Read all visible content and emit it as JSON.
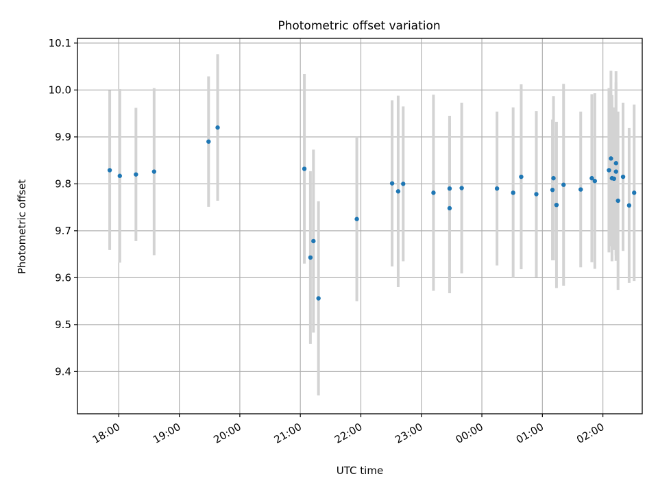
{
  "chart_data": {
    "type": "scatter",
    "title": "Photometric offset variation",
    "xlabel": "UTC time",
    "ylabel": "Photometric offset",
    "grid": true,
    "x_axis": "time (hours, wrapping past midnight)",
    "xlim": [
      "17:19",
      "26:39"
    ],
    "ylim": [
      9.31,
      10.11
    ],
    "x_ticks": [
      {
        "t": "18:00",
        "label": "18:00"
      },
      {
        "t": "19:00",
        "label": "19:00"
      },
      {
        "t": "20:00",
        "label": "20:00"
      },
      {
        "t": "21:00",
        "label": "21:00"
      },
      {
        "t": "22:00",
        "label": "22:00"
      },
      {
        "t": "23:00",
        "label": "23:00"
      },
      {
        "t": "24:00",
        "label": "00:00"
      },
      {
        "t": "25:00",
        "label": "01:00"
      },
      {
        "t": "26:00",
        "label": "02:00"
      }
    ],
    "y_ticks": [
      "9.4",
      "9.5",
      "9.6",
      "9.7",
      "9.8",
      "9.9",
      "10.0",
      "10.1"
    ],
    "colors": {
      "points": "#1f77b4",
      "errorbars": "#d3d3d3",
      "grid": "#b0b0b0"
    },
    "points": [
      {
        "t": "17:51",
        "y": 9.829,
        "err": 0.17
      },
      {
        "t": "18:01",
        "y": 9.817,
        "err": 0.185
      },
      {
        "t": "18:17",
        "y": 9.82,
        "err": 0.142
      },
      {
        "t": "18:35",
        "y": 9.826,
        "err": 0.178
      },
      {
        "t": "19:29",
        "y": 9.89,
        "err": 0.139
      },
      {
        "t": "19:38",
        "y": 9.92,
        "err": 0.156
      },
      {
        "t": "21:04",
        "y": 9.832,
        "err": 0.202
      },
      {
        "t": "21:10",
        "y": 9.643,
        "err": 0.184
      },
      {
        "t": "21:13",
        "y": 9.678,
        "err": 0.195
      },
      {
        "t": "21:18",
        "y": 9.556,
        "err": 0.207
      },
      {
        "t": "21:56",
        "y": 9.725,
        "err": 0.175
      },
      {
        "t": "22:31",
        "y": 9.801,
        "err": 0.177
      },
      {
        "t": "22:37",
        "y": 9.784,
        "err": 0.204
      },
      {
        "t": "22:42",
        "y": 9.8,
        "err": 0.165
      },
      {
        "t": "23:12",
        "y": 9.781,
        "err": 0.209
      },
      {
        "t": "23:28",
        "y": 9.748,
        "err": 0.181
      },
      {
        "t": "23:28",
        "y": 9.79,
        "err": 0.155
      },
      {
        "t": "23:40",
        "y": 9.791,
        "err": 0.182
      },
      {
        "t": "24:15",
        "y": 9.79,
        "err": 0.164
      },
      {
        "t": "24:31",
        "y": 9.781,
        "err": 0.182
      },
      {
        "t": "24:39",
        "y": 9.815,
        "err": 0.197
      },
      {
        "t": "24:54",
        "y": 9.778,
        "err": 0.177
      },
      {
        "t": "25:11",
        "y": 9.812,
        "err": 0.175
      },
      {
        "t": "25:10",
        "y": 9.787,
        "err": 0.15
      },
      {
        "t": "25:14",
        "y": 9.755,
        "err": 0.177
      },
      {
        "t": "25:21",
        "y": 9.798,
        "err": 0.215
      },
      {
        "t": "25:38",
        "y": 9.788,
        "err": 0.166
      },
      {
        "t": "25:49",
        "y": 9.812,
        "err": 0.179
      },
      {
        "t": "25:52",
        "y": 9.806,
        "err": 0.187
      },
      {
        "t": "26:06",
        "y": 9.829,
        "err": 0.175
      },
      {
        "t": "26:08",
        "y": 9.854,
        "err": 0.187
      },
      {
        "t": "26:09",
        "y": 9.812,
        "err": 0.177
      },
      {
        "t": "26:11",
        "y": 9.811,
        "err": 0.152
      },
      {
        "t": "26:13",
        "y": 9.844,
        "err": 0.196
      },
      {
        "t": "26:13",
        "y": 9.826,
        "err": 0.19
      },
      {
        "t": "26:15",
        "y": 9.764,
        "err": 0.19
      },
      {
        "t": "26:20",
        "y": 9.815,
        "err": 0.158
      },
      {
        "t": "26:26",
        "y": 9.754,
        "err": 0.165
      },
      {
        "t": "26:31",
        "y": 9.781,
        "err": 0.188
      }
    ]
  }
}
